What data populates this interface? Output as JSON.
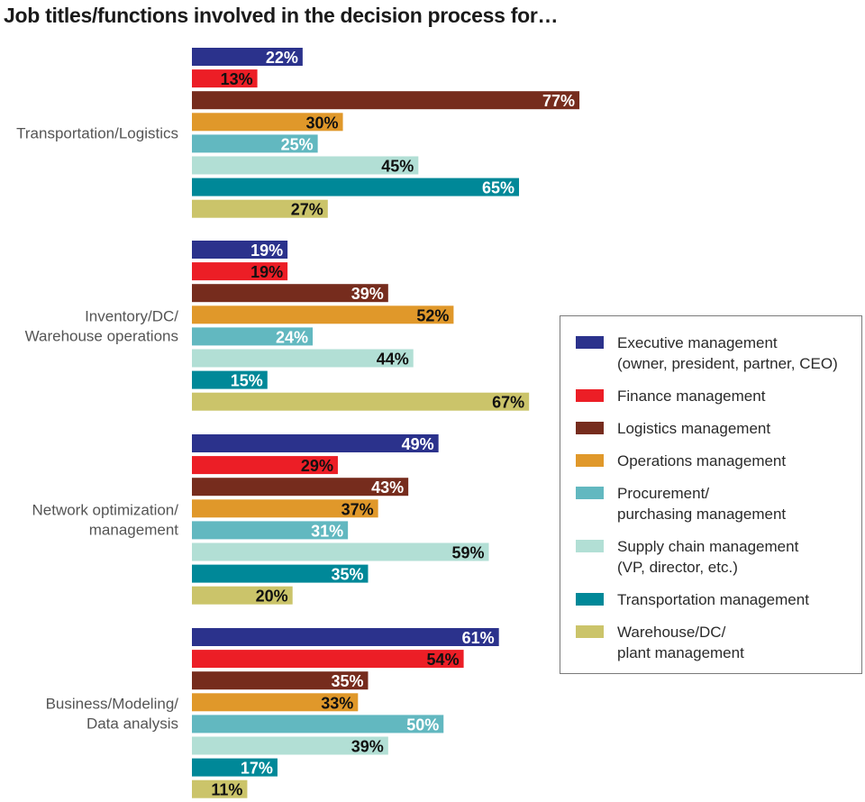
{
  "chart_data": {
    "type": "bar",
    "orientation": "horizontal",
    "title": "Job titles/functions involved in the decision process for…",
    "xlabel": "",
    "ylabel": "",
    "xlim": [
      0,
      100
    ],
    "value_suffix": "%",
    "grid": false,
    "legend_position": "right",
    "categories": [
      "Transportation/Logistics",
      "Inventory/DC/\nWarehouse operations",
      "Network optimization/\nmanagement",
      "Business/Modeling/\nData analysis"
    ],
    "series": [
      {
        "name": "Executive management\n(owner, president, partner, CEO)",
        "color": "#2b328c",
        "label_color": "#ffffff",
        "values": [
          22,
          19,
          49,
          61
        ]
      },
      {
        "name": "Finance management",
        "color": "#ec1e26",
        "label_color": "#111111",
        "values": [
          13,
          19,
          29,
          54
        ]
      },
      {
        "name": "Logistics management",
        "color": "#762c1d",
        "label_color": "#ffffff",
        "values": [
          77,
          39,
          43,
          35
        ]
      },
      {
        "name": "Operations management",
        "color": "#e0982a",
        "label_color": "#111111",
        "values": [
          30,
          52,
          37,
          33
        ]
      },
      {
        "name": "Procurement/\npurchasing management",
        "color": "#62b8c0",
        "label_color": "#ffffff",
        "values": [
          25,
          24,
          31,
          50
        ]
      },
      {
        "name": "Supply chain management\n(VP, director, etc.)",
        "color": "#b2dfd5",
        "label_color": "#111111",
        "values": [
          45,
          44,
          59,
          39
        ]
      },
      {
        "name": "Transportation management",
        "color": "#008898",
        "label_color": "#ffffff",
        "values": [
          65,
          15,
          35,
          17
        ]
      },
      {
        "name": "Warehouse/DC/\nplant management",
        "color": "#cbc46a",
        "label_color": "#111111",
        "values": [
          27,
          67,
          20,
          11
        ]
      }
    ]
  }
}
